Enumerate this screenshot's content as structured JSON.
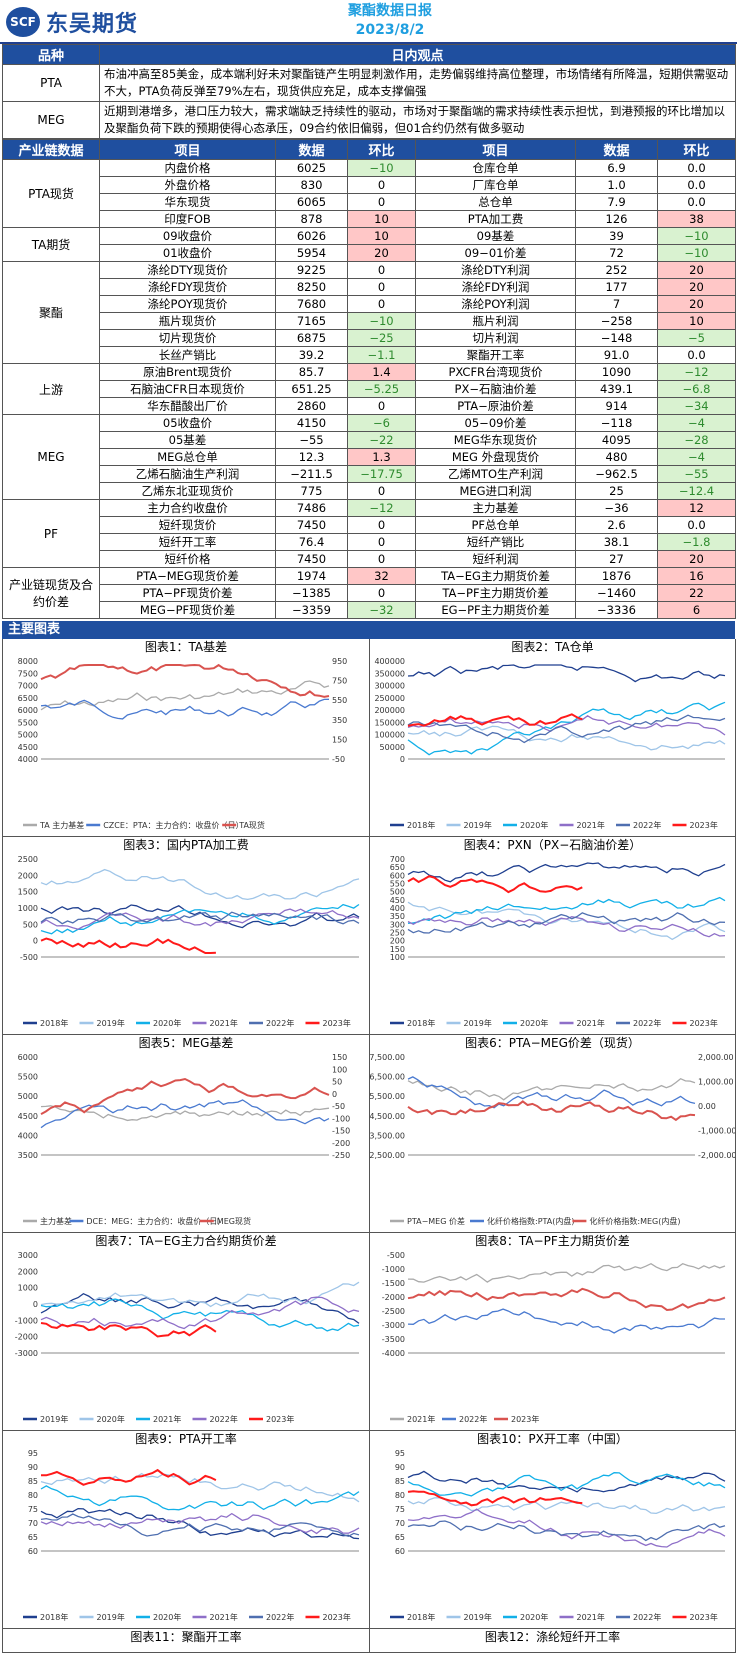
{
  "header": {
    "logo_text": "东吴期货",
    "logo_mark": "SCF",
    "title": "聚酯数据日报",
    "date": "2023/8/2"
  },
  "view": {
    "h_kind": "品种",
    "h_view": "日内观点",
    "rows": [
      {
        "kind": "PTA",
        "text": "布油冲高至85美金，成本端利好未对聚酯链产生明显刺激作用，走势偏弱维持高位整理，市场情绪有所降温，短期供需驱动不大，PTA负荷反弹至79%左右，现货供应充足，成本支撑偏强"
      },
      {
        "kind": "MEG",
        "text": "近期到港增多，港口压力较大，需求端缺乏持续性的驱动，市场对于聚酯端的需求持续性表示担忧，到港预报的环比增加以及聚酯负荷下跌的预期使得心态承压，09合约依旧偏弱，但01合约仍然有做多驱动"
      }
    ]
  },
  "dt": {
    "headers": [
      "产业链数据",
      "项目",
      "数据",
      "环比",
      "项目",
      "数据",
      "环比"
    ],
    "groups": [
      {
        "cat": "PTA现货",
        "rows": [
          [
            "内盘价格",
            "6025",
            "−10",
            "仓库仓单",
            "6.9",
            "0.0"
          ],
          [
            "外盘价格",
            "830",
            "0",
            "厂库仓单",
            "1.0",
            "0.0"
          ],
          [
            "华东现货",
            "6065",
            "0",
            "总仓单",
            "7.9",
            "0.0"
          ],
          [
            "印度FOB",
            "878",
            "10",
            "PTA加工费",
            "126",
            "38"
          ]
        ]
      },
      {
        "cat": "TA期货",
        "rows": [
          [
            "09收盘价",
            "6026",
            "10",
            "09基差",
            "39",
            "−10"
          ],
          [
            "01收盘价",
            "5954",
            "20",
            "09−01价差",
            "72",
            "−10"
          ]
        ]
      },
      {
        "cat": "聚酯",
        "rows": [
          [
            "涤纶DTY现货价",
            "9225",
            "0",
            "涤纶DTY利润",
            "252",
            "20"
          ],
          [
            "涤纶FDY现货价",
            "8250",
            "0",
            "涤纶FDY利润",
            "177",
            "20"
          ],
          [
            "涤纶POY现货价",
            "7680",
            "0",
            "涤纶POY利润",
            "7",
            "20"
          ],
          [
            "瓶片现货价",
            "7165",
            "−10",
            "瓶片利润",
            "−258",
            "10"
          ],
          [
            "切片现货价",
            "6875",
            "−25",
            "切片利润",
            "−148",
            "−5"
          ],
          [
            "长丝产销比",
            "39.2",
            "−1.1",
            "聚酯开工率",
            "91.0",
            "0.0"
          ]
        ]
      },
      {
        "cat": "上游",
        "rows": [
          [
            "原油Brent现货价",
            "85.7",
            "1.4",
            "PXCFR台湾现货价",
            "1090",
            "−12"
          ],
          [
            "石脑油CFR日本现货价",
            "651.25",
            "−5.25",
            "PX−石脑油价差",
            "439.1",
            "−6.8"
          ],
          [
            "华东醋酸出厂价",
            "2860",
            "0",
            "PTA−原油价差",
            "914",
            "−34"
          ]
        ]
      },
      {
        "cat": "MEG",
        "rows": [
          [
            "05收盘价",
            "4150",
            "−6",
            "05−09价差",
            "−118",
            "−4"
          ],
          [
            "05基差",
            "−55",
            "−22",
            "MEG华东现货价",
            "4095",
            "−28"
          ],
          [
            "MEG总仓单",
            "12.3",
            "1.3",
            "MEG 外盘现货价",
            "480",
            "−4"
          ],
          [
            "乙烯石脑油生产利润",
            "−211.5",
            "−17.75",
            "乙烯MTO生产利润",
            "−962.5",
            "−55"
          ],
          [
            "乙烯东北亚现货价",
            "775",
            "0",
            "MEG进口利润",
            "25",
            "−12.4"
          ]
        ]
      },
      {
        "cat": "PF",
        "rows": [
          [
            "主力合约收盘价",
            "7486",
            "−12",
            "主力基差",
            "−36",
            "12"
          ],
          [
            "短纤现货价",
            "7450",
            "0",
            "PF总仓单",
            "2.6",
            "0.0"
          ],
          [
            "短纤开工率",
            "76.4",
            "0",
            "短纤产销比",
            "38.1",
            "−1.8"
          ],
          [
            "短纤价格",
            "7450",
            "0",
            "短纤利润",
            "27",
            "20"
          ]
        ]
      },
      {
        "cat": "产业链现货及合约价差",
        "rows": [
          [
            "PTA−MEG现货价差",
            "1974",
            "32",
            "TA−EG主力期货价差",
            "1876",
            "16"
          ],
          [
            "PTA−PF现货价差",
            "−1385",
            "0",
            "TA−PF主力期货价差",
            "−1460",
            "22"
          ],
          [
            "MEG−PF现货价差",
            "−3359",
            "−32",
            "EG−PF主力期货价差",
            "−3336",
            "6"
          ]
        ]
      }
    ]
  },
  "charts": {
    "section": "主要图表",
    "items": [
      {
        "title": "图表1：TA基差",
        "legend": [
          "TA 主力基差",
          "CZCE：PTA：主力合约：收盘价（日）",
          "TA现货"
        ],
        "yl": [
          "8000",
          "7500",
          "7000",
          "6500",
          "6000",
          "5500",
          "5000",
          "4500",
          "4000"
        ],
        "yr": [
          "950",
          "750",
          "550",
          "350",
          "150",
          "-50"
        ]
      },
      {
        "title": "图表2：TA仓单",
        "legend": [
          "2018年",
          "2019年",
          "2020年",
          "2021年",
          "2022年",
          "2023年"
        ],
        "yl": [
          "400000",
          "350000",
          "300000",
          "250000",
          "200000",
          "150000",
          "100000",
          "50000",
          "0"
        ]
      },
      {
        "title": "图表3：国内PTA加工费",
        "legend": [
          "2018年",
          "2019年",
          "2020年",
          "2021年",
          "2022年",
          "2023年"
        ],
        "yl": [
          "2500",
          "2000",
          "1500",
          "1000",
          "500",
          "0",
          "-500"
        ]
      },
      {
        "title": "图表4：PXN（PX−石脑油价差）",
        "legend": [
          "2018年",
          "2019年",
          "2020年",
          "2021年",
          "2022年",
          "2023年"
        ],
        "yl": [
          "700",
          "650",
          "600",
          "550",
          "500",
          "450",
          "400",
          "350",
          "300",
          "250",
          "200",
          "150",
          "100"
        ]
      },
      {
        "title": "图表5：MEG基差",
        "legend": [
          "主力基差",
          "DCE：MEG：主力合约：收盘价（日）",
          "MEG现货"
        ],
        "yl": [
          "6000",
          "5500",
          "5000",
          "4500",
          "4000",
          "3500"
        ],
        "yr": [
          "150",
          "100",
          "50",
          "0",
          "-50",
          "-100",
          "-150",
          "-200",
          "-250"
        ]
      },
      {
        "title": "图表6：PTA−MEG价差（现货）",
        "legend": [
          "PTA−MEG 价差",
          "化纤价格指数:PTA(内盘)",
          "化纤价格指数:MEG(内盘)"
        ],
        "yl": [
          "7,500.00",
          "6,500.00",
          "5,500.00",
          "4,500.00",
          "3,500.00",
          "2,500.00"
        ],
        "yr": [
          "2,000.00",
          "1,000.00",
          "0.00",
          "-1,000.00",
          "-2,000.00"
        ]
      },
      {
        "title": "图表7：TA−EG主力合约期货价差",
        "legend": [
          "2019年",
          "2020年",
          "2021年",
          "2022年",
          "2023年"
        ],
        "yl": [
          "3000",
          "2000",
          "1000",
          "0",
          "-1000",
          "-2000",
          "-3000"
        ]
      },
      {
        "title": "图表8：TA−PF主力期货价差",
        "legend": [
          "2021年",
          "2022年",
          "2023年"
        ],
        "yl": [
          "-500",
          "-1000",
          "-1500",
          "-2000",
          "-2500",
          "-3000",
          "-3500",
          "-4000"
        ]
      },
      {
        "title": "图表9：PTA开工率",
        "legend": [
          "2018年",
          "2019年",
          "2020年",
          "2021年",
          "2022年",
          "2023年"
        ],
        "yl": [
          "95",
          "90",
          "85",
          "80",
          "75",
          "70",
          "65",
          "60"
        ]
      },
      {
        "title": "图表10：PX开工率（中国）",
        "legend": [
          "2018年",
          "2019年",
          "2020年",
          "2021年",
          "2022年",
          "2023年"
        ],
        "yl": [
          "95",
          "90",
          "85",
          "80",
          "75",
          "70",
          "65",
          "60"
        ]
      },
      {
        "title": "图表11：聚酯开工率",
        "legend": [],
        "yl": [
          "100"
        ]
      },
      {
        "title": "图表12：涤纶短纤开工率",
        "legend": [],
        "yl": [
          "100"
        ]
      }
    ]
  },
  "colors": {
    "brand": "#1f4f9f",
    "up": "#ffc7c7",
    "down": "#d9f2d0"
  }
}
